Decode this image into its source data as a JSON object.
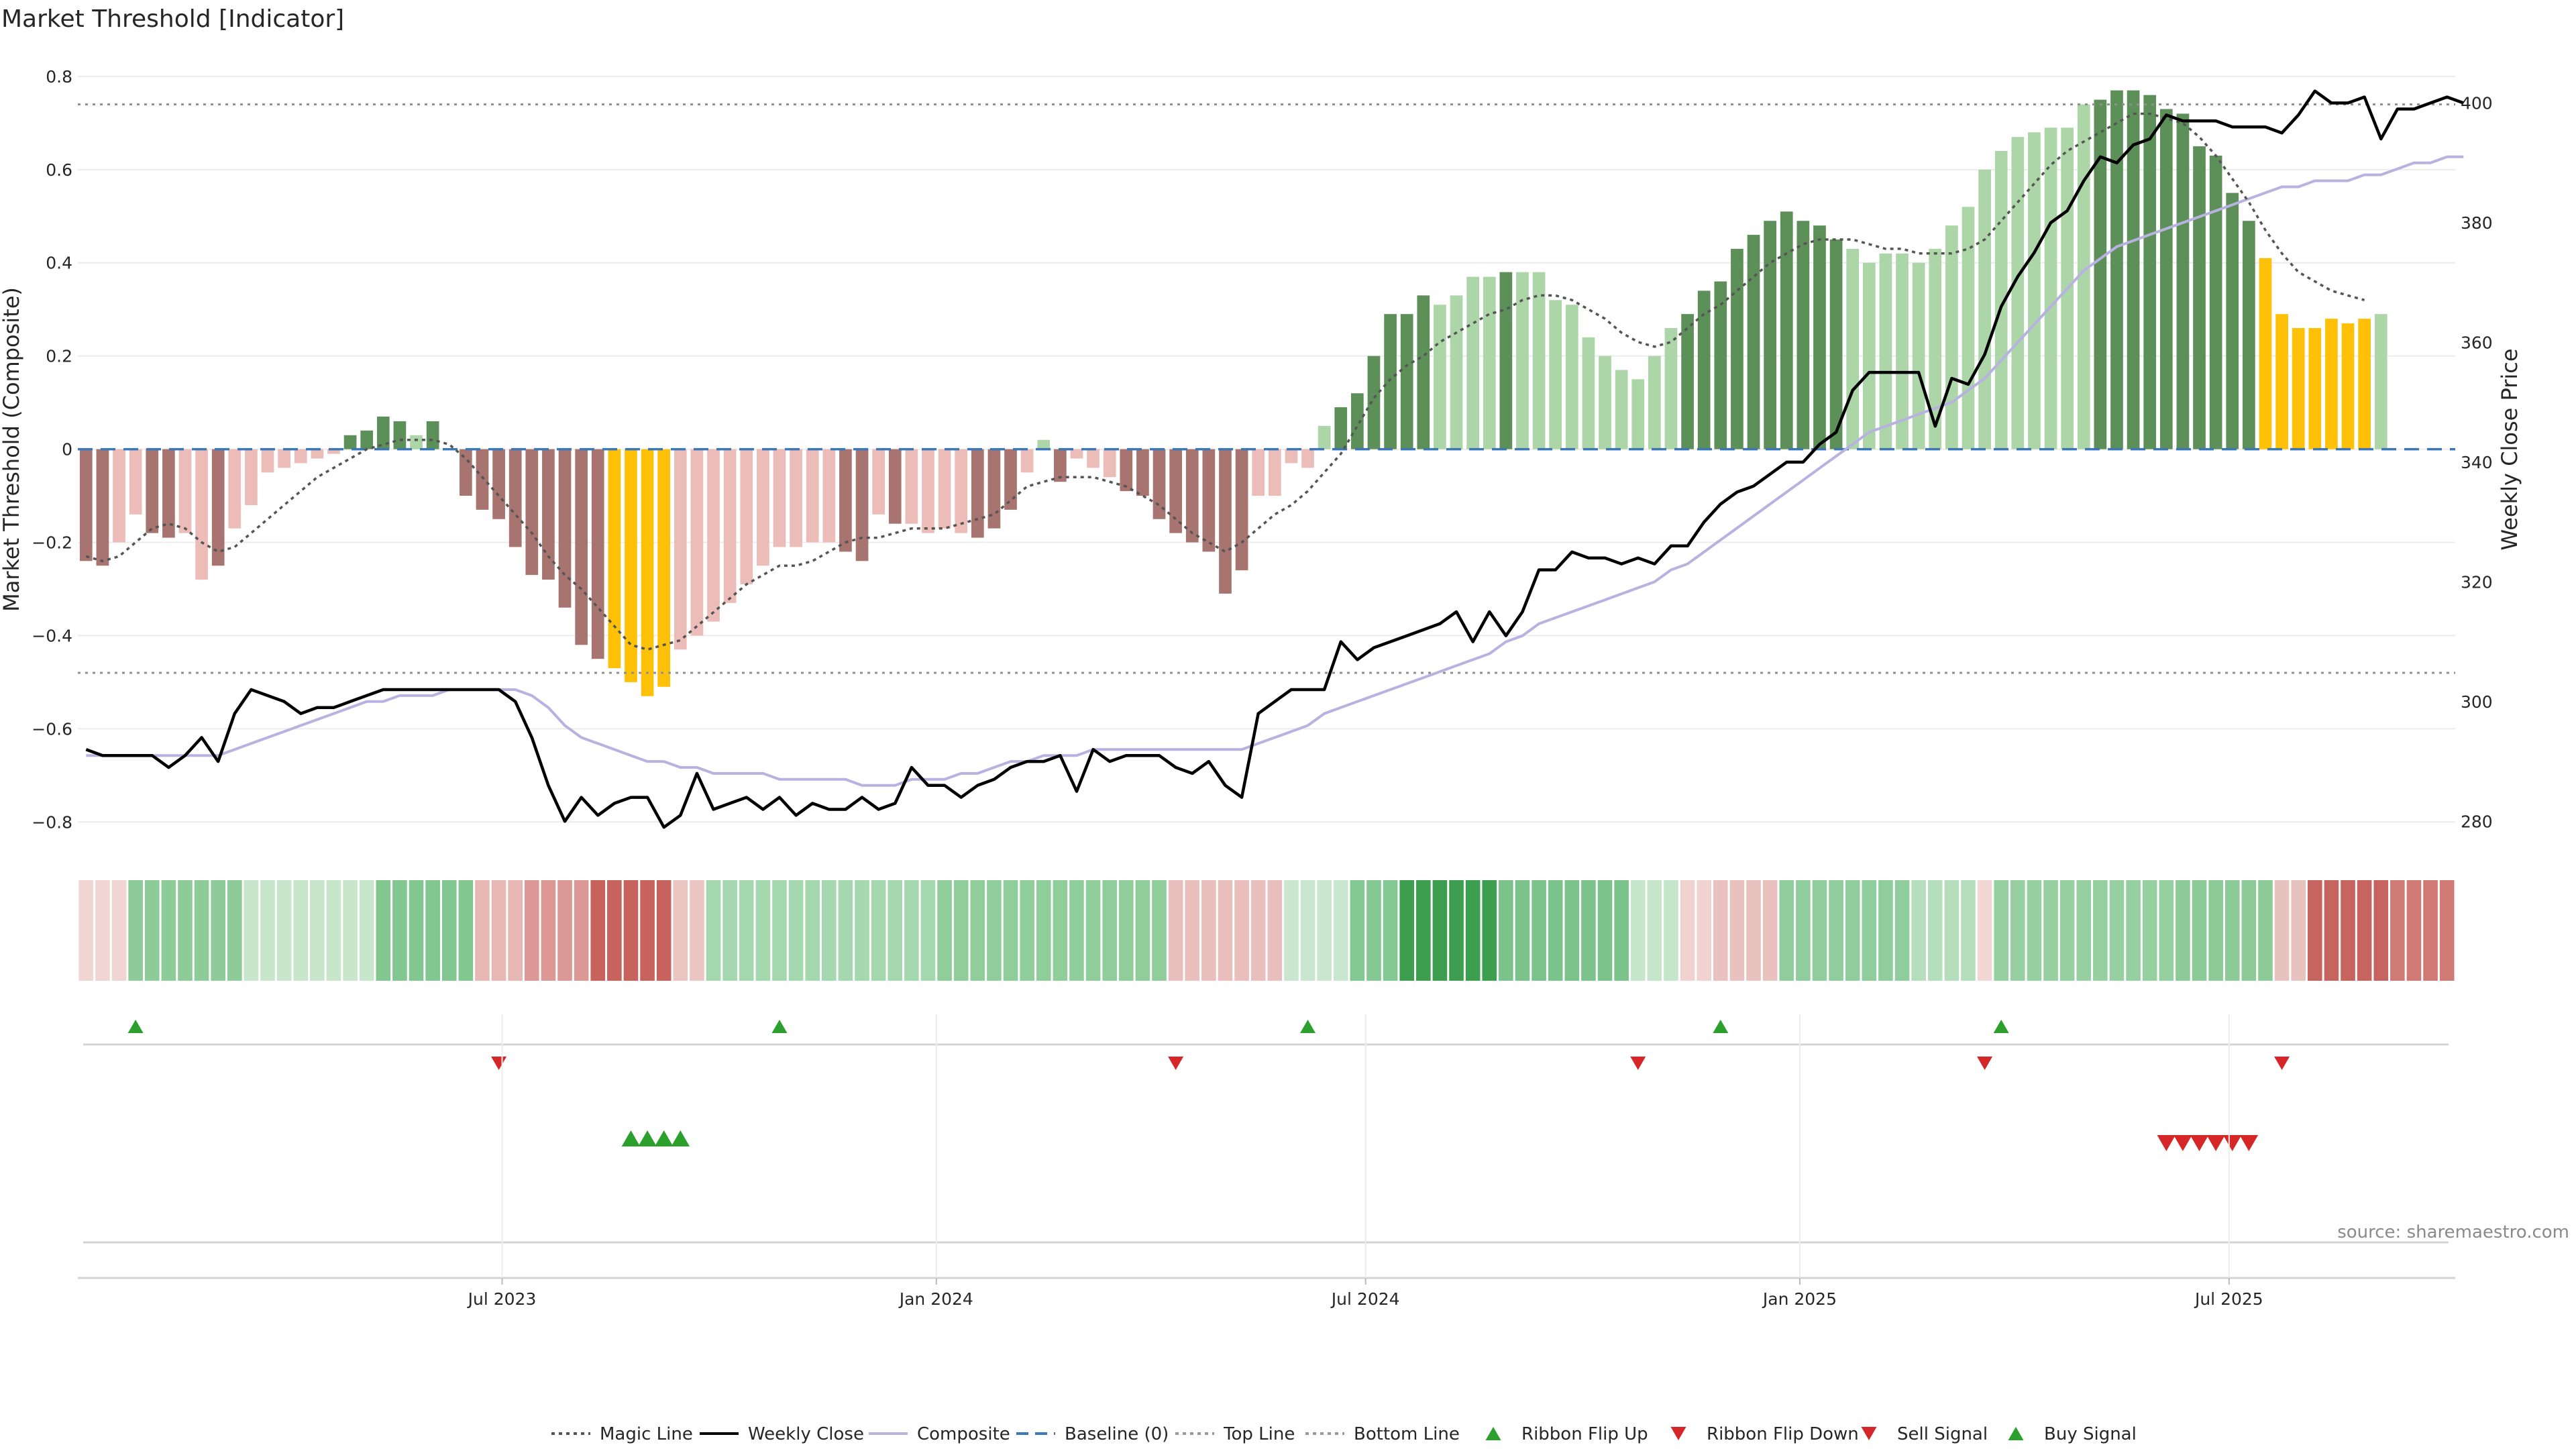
{
  "chart_data": {
    "type": "bar",
    "title": "Market Threshold [Indicator]",
    "source": "source: sharemaestro.com",
    "left_axis": {
      "label": "Market Threshold (Composite)",
      "ylim": [
        -0.85,
        0.82
      ],
      "ticks": [
        0.8,
        0.6,
        0.4,
        0.2,
        0,
        -0.2,
        -0.4,
        -0.6,
        -0.8
      ],
      "tick_labels": [
        "0.8",
        "0.6",
        "0.4",
        "0.2",
        "0",
        "−0.2",
        "−0.4",
        "−0.6",
        "−0.8"
      ]
    },
    "right_axis": {
      "label": "Weekly Close Price",
      "ylim": [
        276,
        406
      ],
      "ticks": [
        400,
        380,
        360,
        340,
        320,
        300,
        280
      ],
      "tick_labels": [
        "400",
        "380",
        "360",
        "340",
        "320",
        "300",
        "280"
      ]
    },
    "x_axis": {
      "start_date": "2023-01-03",
      "weeks": 144,
      "tick_labels": [
        "Jul 2023",
        "Jan 2024",
        "Jul 2024",
        "Jan 2025",
        "Jul 2025"
      ],
      "tick_weeks": [
        25.7,
        52,
        78,
        104.3,
        130.3
      ]
    },
    "top_line": 0.74,
    "bottom_line": -0.48,
    "baseline": 0,
    "composite": [
      -0.24,
      -0.25,
      -0.2,
      -0.14,
      -0.18,
      -0.19,
      -0.18,
      -0.28,
      -0.25,
      -0.17,
      -0.12,
      -0.05,
      -0.04,
      -0.03,
      -0.02,
      -0.01,
      0.03,
      0.04,
      0.07,
      0.06,
      0.03,
      0.06,
      0.0,
      -0.1,
      -0.13,
      -0.15,
      -0.21,
      -0.27,
      -0.28,
      -0.34,
      -0.42,
      -0.45,
      -0.47,
      -0.5,
      -0.53,
      -0.51,
      -0.43,
      -0.4,
      -0.37,
      -0.33,
      -0.29,
      -0.25,
      -0.21,
      -0.21,
      -0.2,
      -0.2,
      -0.22,
      -0.24,
      -0.14,
      -0.16,
      -0.16,
      -0.18,
      -0.17,
      -0.18,
      -0.19,
      -0.17,
      -0.13,
      -0.05,
      0.02,
      -0.07,
      -0.02,
      -0.04,
      -0.06,
      -0.09,
      -0.1,
      -0.15,
      -0.18,
      -0.2,
      -0.22,
      -0.31,
      -0.26,
      -0.1,
      -0.1,
      -0.03,
      -0.04,
      0.05,
      0.09,
      0.12,
      0.2,
      0.29,
      0.29,
      0.33,
      0.31,
      0.33,
      0.37,
      0.37,
      0.38,
      0.38,
      0.38,
      0.32,
      0.31,
      0.24,
      0.2,
      0.17,
      0.15,
      0.2,
      0.26,
      0.29,
      0.34,
      0.36,
      0.43,
      0.46,
      0.49,
      0.51,
      0.49,
      0.48,
      0.45,
      0.43,
      0.4,
      0.42,
      0.42,
      0.4,
      0.43,
      0.48,
      0.52,
      0.6,
      0.64,
      0.67,
      0.68,
      0.69,
      0.69,
      0.74,
      0.75,
      0.77,
      0.77,
      0.76,
      0.73,
      0.72,
      0.65,
      0.63,
      0.55,
      0.49,
      0.41,
      0.29,
      0.26,
      0.26,
      0.28,
      0.27,
      0.28,
      0.29
    ],
    "bar_colors": {
      "strong_negative": "#a87470",
      "weak_negative": "#ecbcb8",
      "strong_positive": "#5d9059",
      "weak_positive": "#acd6a8",
      "extreme": "#ffc107"
    },
    "bar_strength": "sswwsswwswwwwwwwssssws wssssssssseeeewwwwwwwwwwsswswwwwssswwswwwsssssssswwwwwsssssswwwwswwwwwwwwwwsssssssssswwwwwwwwwwwwwwwsssssssssseeeeeeewwwwwwsssss",
    "weekly_close": [
      292,
      291,
      291,
      291,
      291,
      289,
      291,
      294,
      290,
      298,
      302,
      301,
      300,
      298,
      299,
      299,
      300,
      301,
      302,
      302,
      302,
      302,
      302,
      302,
      302,
      302,
      300,
      294,
      286,
      280,
      284,
      281,
      283,
      284,
      284,
      279,
      281,
      288,
      282,
      283,
      284,
      282,
      284,
      281,
      283,
      282,
      282,
      284,
      282,
      283,
      289,
      286,
      286,
      284,
      286,
      287,
      289,
      290,
      290,
      291,
      285,
      292,
      290,
      291,
      291,
      291,
      289,
      288,
      290,
      286,
      284,
      298,
      300,
      302,
      302,
      302,
      310,
      307,
      309,
      310,
      311,
      312,
      313,
      315,
      310,
      315,
      311,
      315,
      322,
      322,
      325,
      324,
      324,
      323,
      324,
      323,
      326,
      326,
      330,
      333,
      335,
      336,
      338,
      340,
      340,
      343,
      345,
      352,
      355,
      355,
      355,
      355,
      346,
      354,
      353,
      358,
      366,
      371,
      375,
      380,
      382,
      387,
      391,
      390,
      393,
      394,
      398,
      397,
      397,
      397,
      396,
      396,
      396,
      395,
      398,
      402,
      400,
      400,
      401,
      394,
      399,
      399,
      400,
      401,
      400
    ],
    "magic_line": [
      -0.23,
      -0.24,
      -0.23,
      -0.2,
      -0.17,
      -0.16,
      -0.17,
      -0.2,
      -0.22,
      -0.21,
      -0.18,
      -0.15,
      -0.12,
      -0.09,
      -0.06,
      -0.04,
      -0.02,
      0.0,
      0.01,
      0.02,
      0.02,
      0.02,
      0.01,
      -0.02,
      -0.06,
      -0.1,
      -0.14,
      -0.18,
      -0.23,
      -0.27,
      -0.3,
      -0.34,
      -0.38,
      -0.42,
      -0.43,
      -0.42,
      -0.41,
      -0.38,
      -0.35,
      -0.32,
      -0.29,
      -0.27,
      -0.25,
      -0.25,
      -0.24,
      -0.22,
      -0.2,
      -0.19,
      -0.19,
      -0.18,
      -0.17,
      -0.17,
      -0.17,
      -0.16,
      -0.15,
      -0.14,
      -0.11,
      -0.08,
      -0.07,
      -0.06,
      -0.06,
      -0.06,
      -0.07,
      -0.08,
      -0.1,
      -0.12,
      -0.15,
      -0.18,
      -0.2,
      -0.22,
      -0.2,
      -0.17,
      -0.14,
      -0.12,
      -0.09,
      -0.05,
      -0.01,
      0.05,
      0.11,
      0.15,
      0.18,
      0.2,
      0.23,
      0.25,
      0.27,
      0.29,
      0.3,
      0.32,
      0.33,
      0.33,
      0.32,
      0.3,
      0.28,
      0.25,
      0.23,
      0.22,
      0.23,
      0.26,
      0.29,
      0.31,
      0.34,
      0.37,
      0.4,
      0.42,
      0.44,
      0.45,
      0.45,
      0.45,
      0.44,
      0.43,
      0.43,
      0.42,
      0.42,
      0.42,
      0.43,
      0.45,
      0.49,
      0.53,
      0.57,
      0.61,
      0.64,
      0.66,
      0.68,
      0.7,
      0.72,
      0.72,
      0.71,
      0.7,
      0.67,
      0.63,
      0.58,
      0.53,
      0.47,
      0.42,
      0.38,
      0.36,
      0.34,
      0.33,
      0.32
    ],
    "composite_smooth": [
      291,
      291,
      291,
      291,
      291,
      291,
      291,
      291,
      291,
      292,
      293,
      294,
      295,
      296,
      297,
      298,
      299,
      300,
      300,
      301,
      301,
      301,
      302,
      302,
      302,
      302,
      302,
      301,
      299,
      296,
      294,
      293,
      292,
      291,
      290,
      290,
      289,
      289,
      288,
      288,
      288,
      288,
      287,
      287,
      287,
      287,
      287,
      286,
      286,
      286,
      287,
      287,
      287,
      288,
      288,
      289,
      290,
      290,
      291,
      291,
      291,
      292,
      292,
      292,
      292,
      292,
      292,
      292,
      292,
      292,
      292,
      293,
      294,
      295,
      296,
      298,
      299,
      300,
      301,
      302,
      303,
      304,
      305,
      306,
      307,
      308,
      310,
      311,
      313,
      314,
      315,
      316,
      317,
      318,
      319,
      320,
      322,
      323,
      325,
      327,
      329,
      331,
      333,
      335,
      337,
      339,
      341,
      343,
      345,
      346,
      347,
      348,
      349,
      350,
      352,
      354,
      357,
      360,
      363,
      366,
      369,
      372,
      374,
      376,
      377,
      378,
      379,
      380,
      381,
      382,
      383,
      384,
      385,
      386,
      386,
      387,
      387,
      387,
      388,
      388,
      389,
      390,
      390,
      391,
      391
    ],
    "ribbon": {
      "colors_hex_by_week": null,
      "segments": [
        {
          "from": 0,
          "to": 3,
          "color": "#f0d5d3"
        },
        {
          "from": 3,
          "to": 10,
          "color": "#8dcb98"
        },
        {
          "from": 10,
          "to": 18,
          "color": "#c8e6cc"
        },
        {
          "from": 18,
          "to": 24,
          "color": "#82c690"
        },
        {
          "from": 24,
          "to": 27,
          "color": "#e8b8b5"
        },
        {
          "from": 27,
          "to": 31,
          "color": "#db9894"
        },
        {
          "from": 31,
          "to": 36,
          "color": "#c8625d"
        },
        {
          "from": 36,
          "to": 38,
          "color": "#eac5c2"
        },
        {
          "from": 38,
          "to": 52,
          "color": "#a5d8ae"
        },
        {
          "from": 52,
          "to": 66,
          "color": "#8fcd9b"
        },
        {
          "from": 66,
          "to": 73,
          "color": "#e8bfbc"
        },
        {
          "from": 73,
          "to": 77,
          "color": "#c9e7ce"
        },
        {
          "from": 77,
          "to": 80,
          "color": "#83c792"
        },
        {
          "from": 80,
          "to": 86,
          "color": "#3e9e4f"
        },
        {
          "from": 86,
          "to": 94,
          "color": "#7cc28b"
        },
        {
          "from": 94,
          "to": 97,
          "color": "#c5e6cb"
        },
        {
          "from": 97,
          "to": 99,
          "color": "#f0d2d0"
        },
        {
          "from": 99,
          "to": 103,
          "color": "#e9c2bf"
        },
        {
          "from": 103,
          "to": 111,
          "color": "#90cd9c"
        },
        {
          "from": 111,
          "to": 115,
          "color": "#b5dfbc"
        },
        {
          "from": 115,
          "to": 116,
          "color": "#f2d7d5"
        },
        {
          "from": 116,
          "to": 127,
          "color": "#96d0a1"
        },
        {
          "from": 127,
          "to": 133,
          "color": "#8ccb98"
        },
        {
          "from": 133,
          "to": 135,
          "color": "#e7c3c0"
        },
        {
          "from": 135,
          "to": 140,
          "color": "#c8645f"
        },
        {
          "from": 140,
          "to": 144,
          "color": "#d07a75"
        }
      ]
    },
    "ribbon_flip_up_weeks": [
      3,
      42,
      74,
      99,
      116
    ],
    "ribbon_flip_down_weeks": [
      25,
      66,
      94,
      115,
      133
    ],
    "buy_signal_weeks": [
      33,
      34,
      35,
      36
    ],
    "sell_signal_weeks": [
      126,
      127,
      128,
      129,
      130,
      131
    ],
    "legend": [
      {
        "label": "Magic Line",
        "kind": "dotted",
        "color": "#555555"
      },
      {
        "label": "Weekly Close",
        "kind": "line",
        "color": "#000000"
      },
      {
        "label": "Composite",
        "kind": "line",
        "color": "#b7b2e0"
      },
      {
        "label": "Baseline (0)",
        "kind": "dashed",
        "color": "#3b78b5"
      },
      {
        "label": "Top Line",
        "kind": "dotted",
        "color": "#999999"
      },
      {
        "label": "Bottom Line",
        "kind": "dotted",
        "color": "#999999"
      },
      {
        "label": "Ribbon Flip Up",
        "kind": "tri-up",
        "color": "#2ca02c"
      },
      {
        "label": "Ribbon Flip Down",
        "kind": "tri-down",
        "color": "#d62728"
      },
      {
        "label": "Sell Signal",
        "kind": "tri-down",
        "color": "#d62728"
      },
      {
        "label": "Buy Signal",
        "kind": "tri-up",
        "color": "#2ca02c"
      }
    ]
  }
}
